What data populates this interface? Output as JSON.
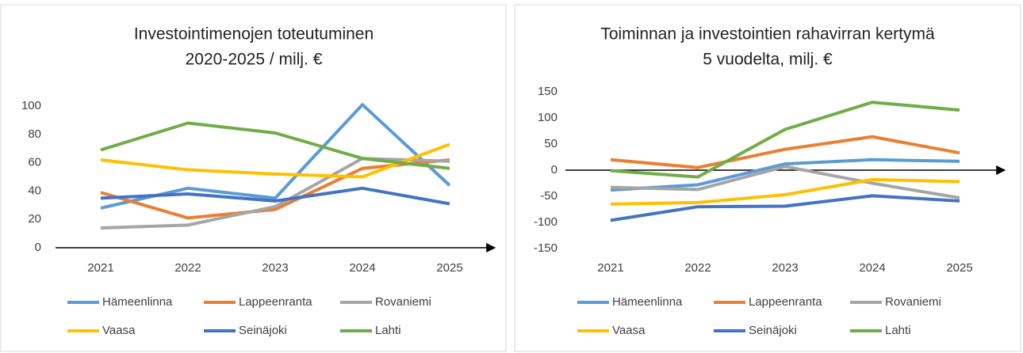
{
  "chart_data": [
    {
      "type": "line",
      "title": [
        "Investointimenojen toteutuminen",
        "2020-2025 / milj. €"
      ],
      "categories": [
        "2021",
        "2022",
        "2023",
        "2024",
        "2025"
      ],
      "ylim": [
        0,
        100
      ],
      "yticks": [
        0,
        20,
        40,
        60,
        80,
        100
      ],
      "series": [
        {
          "name": "Hämeenlinna",
          "color": "#5b9bd5",
          "values": [
            28,
            42,
            35,
            101,
            44
          ]
        },
        {
          "name": "Lappeenranta",
          "color": "#ed7d31",
          "values": [
            39,
            21,
            27,
            56,
            62
          ]
        },
        {
          "name": "Rovaniemi",
          "color": "#a5a5a5",
          "values": [
            14,
            16,
            29,
            63,
            61
          ]
        },
        {
          "name": "Vaasa",
          "color": "#ffc000",
          "values": [
            62,
            55,
            52,
            50,
            73
          ]
        },
        {
          "name": "Seinäjoki",
          "color": "#4472c4",
          "values": [
            35,
            38,
            33,
            42,
            31
          ]
        },
        {
          "name": "Lahti",
          "color": "#70ad47",
          "values": [
            69,
            88,
            81,
            63,
            56
          ]
        }
      ]
    },
    {
      "type": "line",
      "title": [
        "Toiminnan ja investointien rahavirran kertymä",
        "5 vuodelta, milj. €"
      ],
      "categories": [
        "2021",
        "2022",
        "2023",
        "2024",
        "2025"
      ],
      "ylim": [
        -150,
        150
      ],
      "yticks": [
        -150,
        -100,
        -50,
        0,
        50,
        100,
        150
      ],
      "series": [
        {
          "name": "Hämeenlinna",
          "color": "#5b9bd5",
          "values": [
            -38,
            -28,
            12,
            20,
            17
          ]
        },
        {
          "name": "Lappeenranta",
          "color": "#ed7d31",
          "values": [
            20,
            5,
            40,
            64,
            33
          ]
        },
        {
          "name": "Rovaniemi",
          "color": "#a5a5a5",
          "values": [
            -33,
            -37,
            7,
            -25,
            -53
          ]
        },
        {
          "name": "Vaasa",
          "color": "#ffc000",
          "values": [
            -65,
            -62,
            -47,
            -18,
            -22
          ]
        },
        {
          "name": "Seinäjoki",
          "color": "#4472c4",
          "values": [
            -96,
            -70,
            -69,
            -49,
            -59
          ]
        },
        {
          "name": "Lahti",
          "color": "#70ad47",
          "values": [
            -1,
            -13,
            78,
            130,
            115
          ]
        }
      ]
    }
  ]
}
